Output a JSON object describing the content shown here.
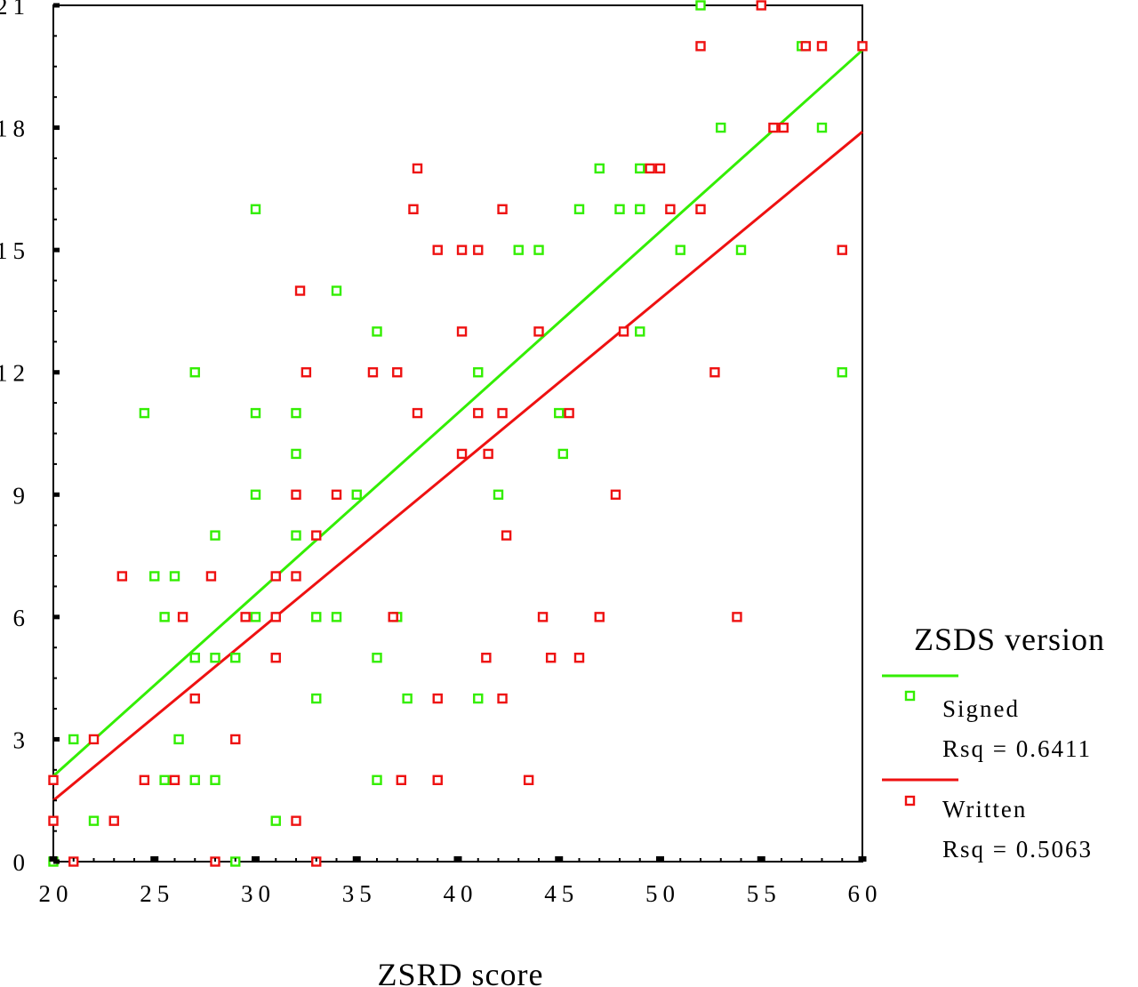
{
  "chart_data": {
    "type": "scatter",
    "title": "",
    "xlabel": "ZSRD score",
    "ylabel": "",
    "xlim": [
      20,
      60
    ],
    "ylim": [
      0,
      21
    ],
    "x_ticks": [
      "20",
      "25",
      "30",
      "35",
      "40",
      "45",
      "50",
      "55",
      "60"
    ],
    "y_ticks": [
      "0",
      "3",
      "6",
      "9",
      "12",
      "15",
      "18",
      "21"
    ],
    "grid": false,
    "legend": {
      "title": "ZSDS version",
      "placement": "right"
    },
    "series": [
      {
        "name": "Signed",
        "color": "#33ee00",
        "rsq_label": "Rsq = 0.6411",
        "fit": {
          "x": [
            20,
            60
          ],
          "y": [
            2.1,
            19.9
          ]
        },
        "points": [
          [
            20,
            0
          ],
          [
            21,
            3
          ],
          [
            22,
            1
          ],
          [
            24.5,
            11
          ],
          [
            25,
            7
          ],
          [
            25.5,
            6
          ],
          [
            26,
            7
          ],
          [
            26.2,
            3
          ],
          [
            25.5,
            2
          ],
          [
            27,
            12
          ],
          [
            27,
            5
          ],
          [
            27,
            2
          ],
          [
            28,
            8
          ],
          [
            28,
            5
          ],
          [
            28,
            2
          ],
          [
            29,
            5
          ],
          [
            29,
            0
          ],
          [
            30,
            16
          ],
          [
            30,
            11
          ],
          [
            30,
            9
          ],
          [
            30,
            6
          ],
          [
            31,
            1
          ],
          [
            32,
            11
          ],
          [
            32,
            10
          ],
          [
            32,
            8
          ],
          [
            33,
            6
          ],
          [
            33,
            4
          ],
          [
            34,
            14
          ],
          [
            34,
            6
          ],
          [
            35,
            9
          ],
          [
            36,
            13
          ],
          [
            36,
            5
          ],
          [
            36,
            2
          ],
          [
            37,
            6
          ],
          [
            37.5,
            4
          ],
          [
            41,
            12
          ],
          [
            41,
            4
          ],
          [
            42,
            9
          ],
          [
            43,
            15
          ],
          [
            44,
            15
          ],
          [
            45,
            11
          ],
          [
            45.2,
            10
          ],
          [
            46,
            16
          ],
          [
            47,
            17
          ],
          [
            48,
            16
          ],
          [
            49,
            17
          ],
          [
            49,
            16
          ],
          [
            49,
            13
          ],
          [
            51,
            15
          ],
          [
            52,
            21
          ],
          [
            53,
            18
          ],
          [
            54,
            15
          ],
          [
            57,
            20
          ],
          [
            58,
            18
          ],
          [
            59,
            12
          ]
        ]
      },
      {
        "name": "Written",
        "color": "#ee1111",
        "rsq_label": "Rsq = 0.5063",
        "fit": {
          "x": [
            20,
            60
          ],
          "y": [
            1.5,
            17.9
          ]
        },
        "points": [
          [
            20,
            2
          ],
          [
            20,
            1
          ],
          [
            21,
            0
          ],
          [
            22,
            3
          ],
          [
            23,
            1
          ],
          [
            23.4,
            7
          ],
          [
            24.5,
            2
          ],
          [
            26,
            2
          ],
          [
            26.4,
            6
          ],
          [
            27,
            4
          ],
          [
            27.8,
            7
          ],
          [
            28,
            0
          ],
          [
            29,
            3
          ],
          [
            29.5,
            6
          ],
          [
            31,
            7
          ],
          [
            31,
            6
          ],
          [
            31,
            5
          ],
          [
            32,
            9
          ],
          [
            32,
            7
          ],
          [
            32,
            1
          ],
          [
            32.2,
            14
          ],
          [
            32.5,
            12
          ],
          [
            33,
            8
          ],
          [
            33,
            0
          ],
          [
            34,
            9
          ],
          [
            35.8,
            12
          ],
          [
            37,
            12
          ],
          [
            36.8,
            6
          ],
          [
            37.2,
            2
          ],
          [
            37.8,
            16
          ],
          [
            38,
            17
          ],
          [
            38,
            11
          ],
          [
            39,
            15
          ],
          [
            39,
            4
          ],
          [
            39,
            2
          ],
          [
            40.2,
            15
          ],
          [
            40.2,
            13
          ],
          [
            40.2,
            10
          ],
          [
            41,
            15
          ],
          [
            41,
            11
          ],
          [
            41.4,
            5
          ],
          [
            41.5,
            10
          ],
          [
            42.2,
            16
          ],
          [
            42.2,
            11
          ],
          [
            42.2,
            4
          ],
          [
            42.4,
            8
          ],
          [
            43.5,
            2
          ],
          [
            44,
            13
          ],
          [
            44.2,
            6
          ],
          [
            44.6,
            5
          ],
          [
            45.5,
            11
          ],
          [
            46,
            5
          ],
          [
            47,
            6
          ],
          [
            47.8,
            9
          ],
          [
            48.2,
            13
          ],
          [
            49.5,
            17
          ],
          [
            50,
            17
          ],
          [
            50.5,
            16
          ],
          [
            52,
            20
          ],
          [
            52,
            16
          ],
          [
            52.7,
            12
          ],
          [
            53.8,
            6
          ],
          [
            55,
            21
          ],
          [
            55.6,
            18
          ],
          [
            56.1,
            18
          ],
          [
            57.2,
            20
          ],
          [
            58,
            20
          ],
          [
            59,
            15
          ],
          [
            60,
            20
          ]
        ]
      }
    ]
  }
}
